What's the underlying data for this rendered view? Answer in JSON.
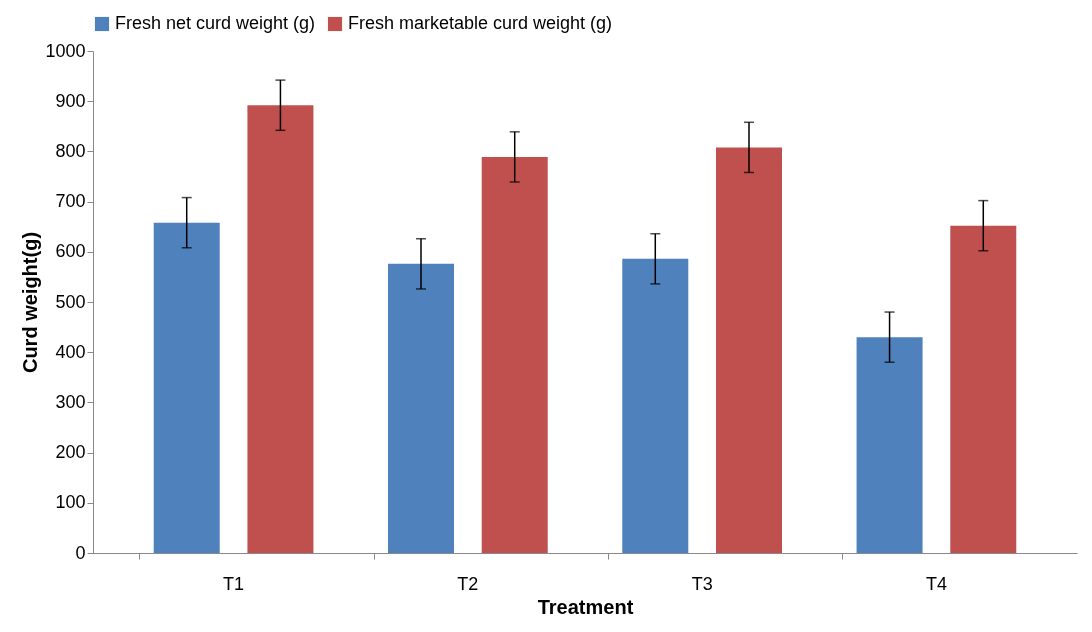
{
  "chart_data": {
    "type": "bar",
    "xlabel": "Treatment",
    "ylabel": "Curd weight(g)",
    "categories": [
      "T1",
      "T2",
      "T3",
      "T4"
    ],
    "series": [
      {
        "name": "Fresh net curd weight (g)",
        "color": "#4f81bd",
        "values": [
          658,
          576,
          586,
          430
        ],
        "errors": [
          50,
          50,
          50,
          50
        ]
      },
      {
        "name": "Fresh marketable curd weight (g)",
        "color": "#c0504d",
        "values": [
          892,
          789,
          808,
          652
        ],
        "errors": [
          50,
          50,
          50,
          50
        ]
      }
    ],
    "ylim": [
      0,
      1000
    ],
    "yticks": [
      0,
      100,
      200,
      300,
      400,
      500,
      600,
      700,
      800,
      900,
      1000
    ],
    "grid": false,
    "legend": "top"
  }
}
